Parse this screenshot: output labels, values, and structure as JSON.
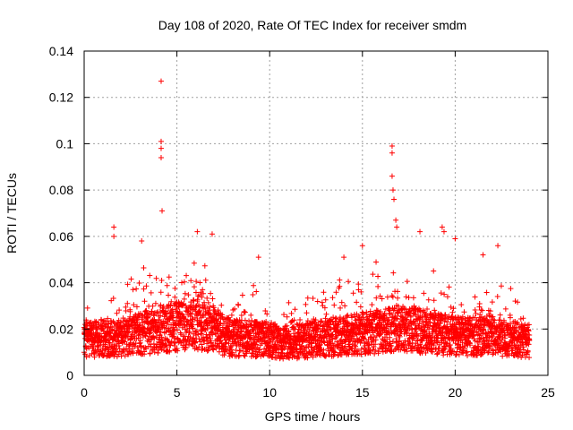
{
  "chart_data": {
    "type": "scatter",
    "title": "Day 108 of 2020, Rate Of TEC Index for receiver smdm",
    "xlabel": "GPS time / hours",
    "ylabel": "ROTI / TECUs",
    "xlim": [
      0,
      25
    ],
    "ylim": [
      0,
      0.14
    ],
    "xticks": [
      0,
      5,
      10,
      15,
      20,
      25
    ],
    "xtick_labels": [
      "0",
      "5",
      "10",
      "15",
      "20",
      "25"
    ],
    "yticks": [
      0,
      0.02,
      0.04,
      0.06,
      0.08,
      0.1,
      0.12,
      0.14
    ],
    "ytick_labels": [
      "0",
      "0.02",
      "0.04",
      "0.06",
      "0.08",
      "0.1",
      "0.12",
      "0.14"
    ],
    "grid": true,
    "marker": "plus",
    "color": "#ff0000",
    "series": [
      {
        "name": "ROTI",
        "envelope": {
          "x": [
            0,
            1,
            2,
            3,
            4,
            5,
            6,
            7,
            8,
            9,
            10,
            11,
            12,
            13,
            14,
            15,
            16,
            17,
            18,
            19,
            20,
            21,
            22,
            23,
            24
          ],
          "median": [
            0.015,
            0.016,
            0.016,
            0.018,
            0.019,
            0.021,
            0.022,
            0.019,
            0.016,
            0.016,
            0.015,
            0.014,
            0.015,
            0.016,
            0.017,
            0.018,
            0.019,
            0.02,
            0.019,
            0.018,
            0.017,
            0.017,
            0.017,
            0.016,
            0.015
          ],
          "upper": [
            0.03,
            0.03,
            0.036,
            0.045,
            0.045,
            0.05,
            0.05,
            0.04,
            0.035,
            0.035,
            0.03,
            0.03,
            0.034,
            0.038,
            0.04,
            0.042,
            0.045,
            0.045,
            0.042,
            0.04,
            0.035,
            0.035,
            0.037,
            0.034,
            0.028
          ]
        },
        "outliers": [
          {
            "x": 4.15,
            "y": 0.127
          },
          {
            "x": 4.15,
            "y": 0.101
          },
          {
            "x": 4.15,
            "y": 0.098
          },
          {
            "x": 4.15,
            "y": 0.094
          },
          {
            "x": 4.2,
            "y": 0.071
          },
          {
            "x": 16.6,
            "y": 0.099
          },
          {
            "x": 16.6,
            "y": 0.096
          },
          {
            "x": 16.6,
            "y": 0.086
          },
          {
            "x": 16.65,
            "y": 0.08
          },
          {
            "x": 16.7,
            "y": 0.076
          },
          {
            "x": 16.8,
            "y": 0.067
          },
          {
            "x": 16.85,
            "y": 0.064
          },
          {
            "x": 1.6,
            "y": 0.064
          },
          {
            "x": 1.6,
            "y": 0.06
          },
          {
            "x": 3.1,
            "y": 0.058
          },
          {
            "x": 6.1,
            "y": 0.062
          },
          {
            "x": 6.9,
            "y": 0.061
          },
          {
            "x": 15.0,
            "y": 0.056
          },
          {
            "x": 19.3,
            "y": 0.064
          },
          {
            "x": 19.4,
            "y": 0.062
          },
          {
            "x": 18.1,
            "y": 0.062
          },
          {
            "x": 22.3,
            "y": 0.056
          },
          {
            "x": 9.4,
            "y": 0.051
          },
          {
            "x": 21.5,
            "y": 0.052
          },
          {
            "x": 14.0,
            "y": 0.051
          },
          {
            "x": 20.0,
            "y": 0.059
          }
        ]
      }
    ]
  }
}
